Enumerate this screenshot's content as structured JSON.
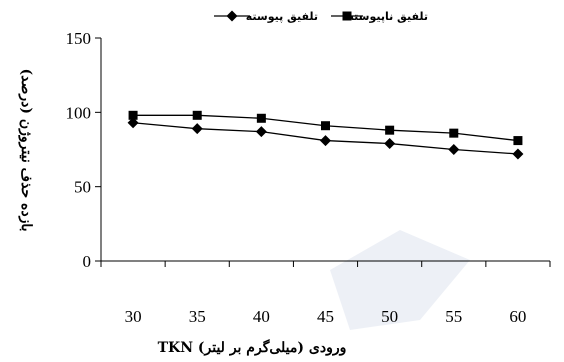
{
  "chart_data": {
    "type": "line",
    "categories": [
      30,
      35,
      40,
      45,
      50,
      55,
      60
    ],
    "series": [
      {
        "name": "تلفیق ناپیوسته",
        "marker": "square",
        "values": [
          98,
          98,
          96,
          91,
          88,
          86,
          81
        ]
      },
      {
        "name": "تلفیق پیوسته",
        "marker": "diamond",
        "values": [
          93,
          89,
          87,
          81,
          79,
          75,
          72
        ]
      }
    ],
    "xlabel": "TKN ورودی (میلی‌گرم بر لیتر)",
    "ylabel": "بازده حذف نیتروژن (درصد)",
    "ylim": [
      0,
      150
    ],
    "yticks": [
      0,
      50,
      100,
      150
    ],
    "legend_position": "top",
    "line_color": "#000000",
    "grid": false
  }
}
